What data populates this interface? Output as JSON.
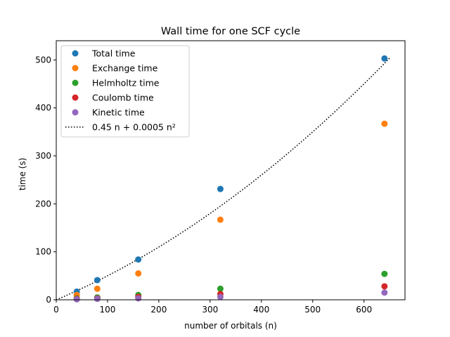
{
  "chart_data": {
    "type": "scatter",
    "title": "Wall time for one SCF cycle",
    "xlabel": "number of orbitals (n)",
    "ylabel": "time (s)",
    "xlim": [
      0,
      680
    ],
    "ylim": [
      0,
      540
    ],
    "xticks": [
      0,
      100,
      200,
      300,
      400,
      500,
      600
    ],
    "yticks": [
      0,
      100,
      200,
      300,
      400,
      500
    ],
    "grid": false,
    "legend_position": "upper-left",
    "x": [
      40,
      80,
      160,
      320,
      640
    ],
    "series": [
      {
        "name": "Total time",
        "color": "#1f77b4",
        "values": [
          17,
          41,
          84,
          231,
          503
        ]
      },
      {
        "name": "Exchange time",
        "color": "#ff7f0e",
        "values": [
          10,
          23,
          55,
          167,
          367
        ]
      },
      {
        "name": "Helmholtz time",
        "color": "#2ca02c",
        "values": [
          3,
          5,
          10,
          23,
          54
        ]
      },
      {
        "name": "Coulomb time",
        "color": "#d62728",
        "values": [
          2,
          3,
          6,
          12,
          28
        ]
      },
      {
        "name": "Kinetic time",
        "color": "#9467bd",
        "values": [
          1,
          2,
          3,
          6,
          15
        ]
      }
    ],
    "fit_line": {
      "name": "0.45 n + 0.0005 n²",
      "style": "dotted",
      "color": "#000000",
      "x_range": [
        0,
        650
      ],
      "coef_linear": 0.45,
      "coef_quadratic": 0.0005
    }
  }
}
